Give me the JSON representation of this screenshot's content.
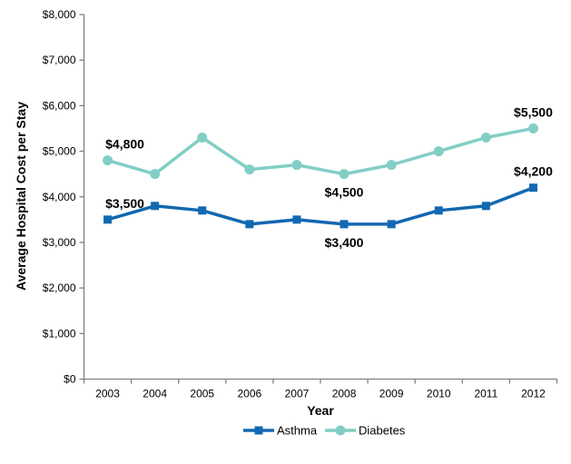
{
  "chart_data": {
    "type": "line",
    "title": "",
    "xlabel": "Year",
    "ylabel": "Average Hospital Cost per Stay",
    "categories": [
      "2003",
      "2004",
      "2005",
      "2006",
      "2007",
      "2008",
      "2009",
      "2010",
      "2011",
      "2012"
    ],
    "series": [
      {
        "name": "Asthma",
        "color": "#1268B1",
        "marker": "square",
        "values": [
          3500,
          3800,
          3700,
          3400,
          3500,
          3400,
          3400,
          3700,
          3800,
          4200
        ]
      },
      {
        "name": "Diabetes",
        "color": "#82CEC5",
        "marker": "circle",
        "values": [
          4800,
          4500,
          5300,
          4600,
          4700,
          4500,
          4700,
          5000,
          5300,
          5500
        ]
      }
    ],
    "ylim": [
      0,
      8000
    ],
    "ytick_interval": 1000,
    "ytick_labels": [
      "$0",
      "$1,000",
      "$2,000",
      "$3,000",
      "$4,000",
      "$5,000",
      "$6,000",
      "$7,000",
      "$8,000"
    ],
    "grid": false,
    "legend_position": "bottom",
    "legend": [
      "Asthma",
      "Diabetes"
    ],
    "annotations": [
      {
        "series": "Diabetes",
        "category": "2003",
        "label": "$4,800",
        "position": "above"
      },
      {
        "series": "Asthma",
        "category": "2003",
        "label": "$3,500",
        "position": "above"
      },
      {
        "series": "Diabetes",
        "category": "2008",
        "label": "$4,500",
        "position": "below"
      },
      {
        "series": "Asthma",
        "category": "2008",
        "label": "$3,400",
        "position": "below"
      },
      {
        "series": "Diabetes",
        "category": "2012",
        "label": "$5,500",
        "position": "above"
      },
      {
        "series": "Asthma",
        "category": "2012",
        "label": "$4,200",
        "position": "above"
      }
    ],
    "axis_color": "#808080",
    "text_color": "#000000"
  }
}
